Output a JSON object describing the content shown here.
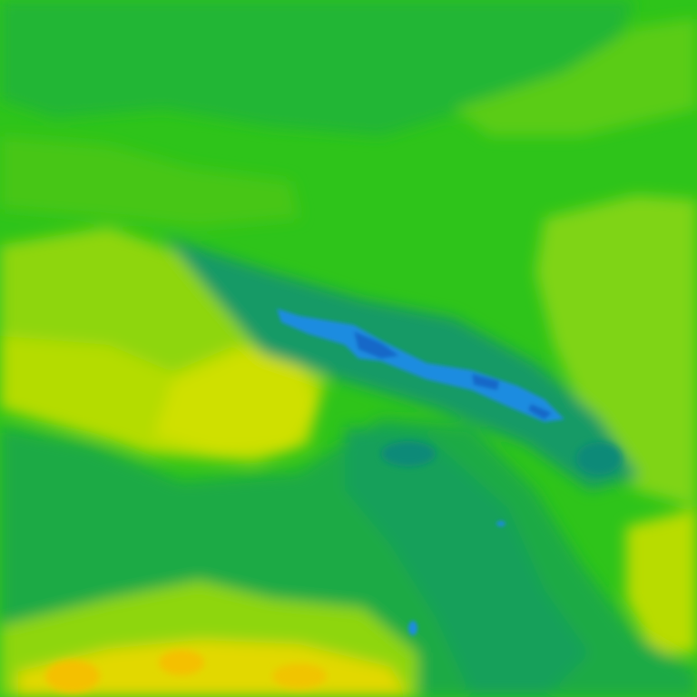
{
  "map": {
    "type": "heatmap",
    "palette": {
      "base_green": "#2ec41a",
      "dark_green": "#1fae3c",
      "teal": "#149a66",
      "deep_teal": "#0f8a78",
      "blue": "#1e8ce0",
      "deep_blue": "#1468c8",
      "lime": "#7fd412",
      "yellow_green": "#b4dc04",
      "yellow": "#d8e200",
      "gold": "#f0d000",
      "orange": "#f4b800"
    }
  }
}
